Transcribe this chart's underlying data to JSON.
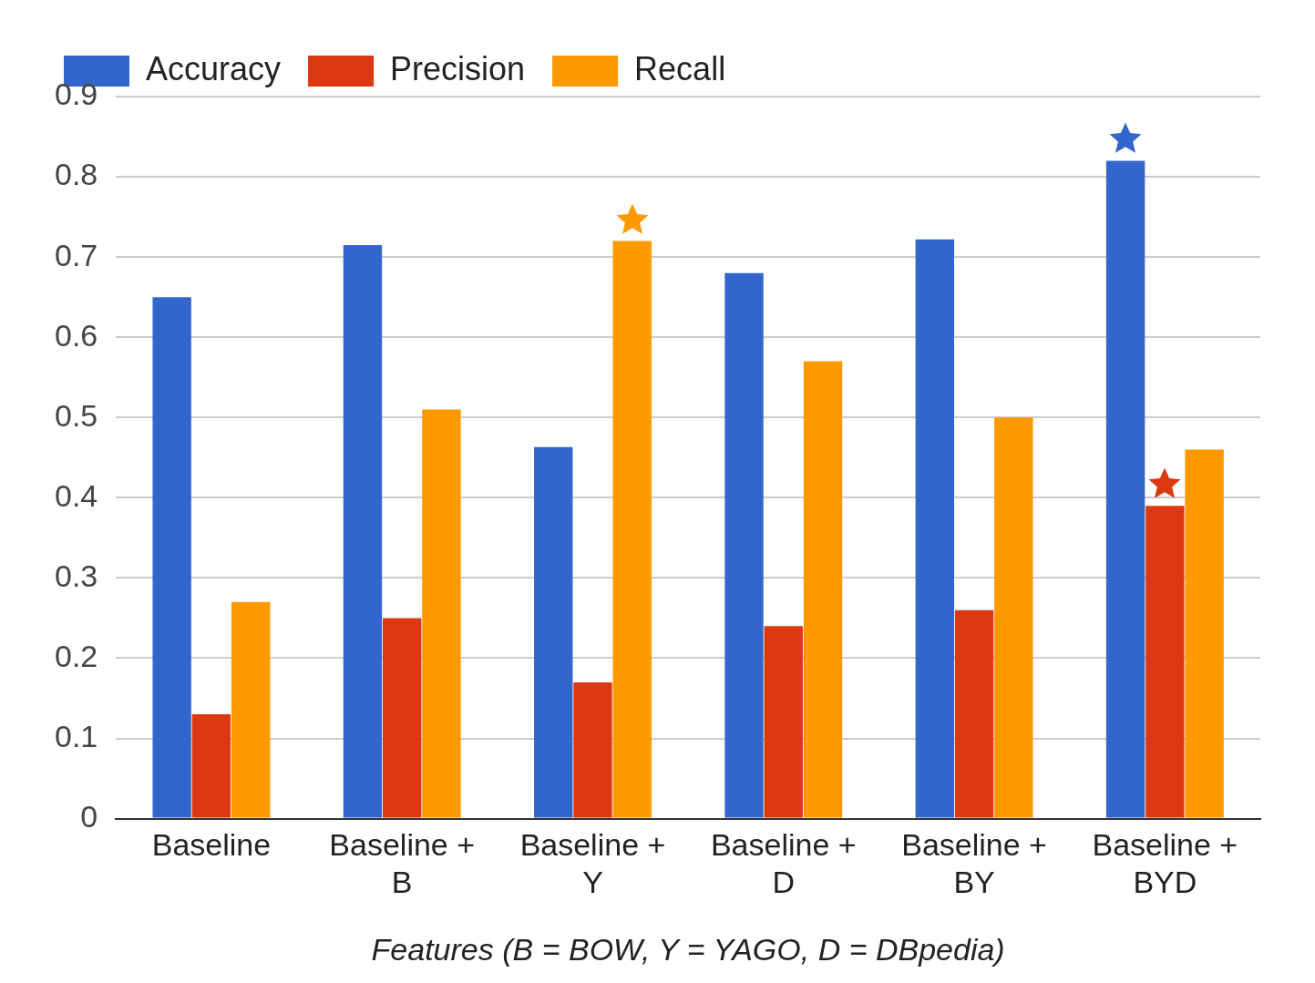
{
  "chart_data": {
    "type": "bar",
    "xlabel": "Features (B = BOW, Y = YAGO, D = DBpedia)",
    "categories": [
      "Baseline",
      "Baseline + B",
      "Baseline + Y",
      "Baseline + D",
      "Baseline + BY",
      "Baseline + BYD"
    ],
    "series": [
      {
        "name": "Accuracy",
        "color": "#3366cc",
        "values": [
          0.65,
          0.715,
          0.463,
          0.68,
          0.722,
          0.82
        ]
      },
      {
        "name": "Precision",
        "color": "#dc3912",
        "values": [
          0.13,
          0.25,
          0.17,
          0.24,
          0.26,
          0.39
        ]
      },
      {
        "name": "Recall",
        "color": "#ff9900",
        "values": [
          0.27,
          0.51,
          0.72,
          0.57,
          0.5,
          0.46
        ]
      }
    ],
    "ylim": [
      0,
      0.9
    ],
    "yticks": [
      0,
      0.1,
      0.2,
      0.3,
      0.4,
      0.5,
      0.6,
      0.7,
      0.8,
      0.9
    ],
    "grid": "y",
    "legend": "top left"
  }
}
